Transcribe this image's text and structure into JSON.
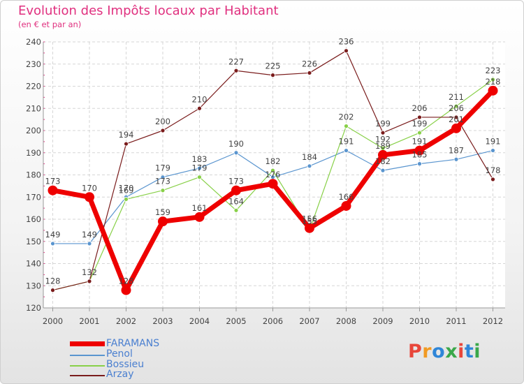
{
  "title": "Evolution des Impôts locaux par Habitant",
  "subtitle": "(en € et par an)",
  "logo": {
    "text": "Proxiti",
    "colors": [
      "#e8463a",
      "#f19a23",
      "#2f86d8",
      "#3aa84a",
      "#e8463a",
      "#2f86d8",
      "#3aa84a"
    ]
  },
  "chart_data": {
    "type": "line",
    "categories": [
      "2000",
      "2001",
      "2002",
      "2003",
      "2004",
      "2005",
      "2006",
      "2007",
      "2008",
      "2009",
      "2010",
      "2011",
      "2012"
    ],
    "ylim": [
      120,
      240
    ],
    "yticks": [
      120,
      130,
      140,
      150,
      160,
      170,
      180,
      190,
      200,
      210,
      220,
      230,
      240
    ],
    "grid": true,
    "series": [
      {
        "name": "FARAMANS",
        "color": "#ee0000",
        "width": 7,
        "marker": 7,
        "values": [
          173,
          170,
          128,
          159,
          161,
          173,
          176,
          156,
          166,
          189,
          191,
          201,
          218
        ],
        "labels": [
          "173",
          "170",
          "128",
          "159",
          "161",
          "173",
          "",
          "156",
          "166",
          "",
          "",
          "",
          ""
        ]
      },
      {
        "name": "Penol",
        "color": "#5a95cf",
        "width": 1.2,
        "marker": 3,
        "values": [
          149,
          149,
          170,
          179,
          183,
          190,
          179,
          184,
          191,
          182,
          185,
          187,
          191
        ],
        "labels": [
          "149",
          "149",
          "170",
          "179",
          "183",
          "190",
          "",
          "184",
          "191",
          "182",
          "185",
          "187",
          "191"
        ]
      },
      {
        "name": "Bossieu",
        "color": "#88d048",
        "width": 1.2,
        "marker": 3,
        "values": [
          128,
          132,
          169,
          173,
          179,
          164,
          182,
          155,
          202,
          192,
          199,
          211,
          223
        ],
        "labels": [
          "",
          "",
          "169",
          "173",
          "179",
          "164",
          "182",
          "155",
          "202",
          "192",
          "199",
          "211",
          "223"
        ]
      },
      {
        "name": "Arzay",
        "color": "#7a1c1c",
        "width": 1.2,
        "marker": 3,
        "values": [
          128,
          132,
          194,
          200,
          210,
          227,
          225,
          226,
          236,
          199,
          206,
          206,
          178
        ],
        "labels": [
          "128",
          "132",
          "194",
          "200",
          "210",
          "227",
          "225",
          "226",
          "236",
          "199",
          "206",
          "206",
          "178"
        ]
      }
    ],
    "extra_labels": [
      {
        "x": "2006",
        "series": "FARAMANS",
        "text": "176"
      },
      {
        "x": "2009",
        "series": "FARAMANS",
        "text": "189"
      },
      {
        "x": "2010",
        "series": "FARAMANS",
        "text": "191"
      },
      {
        "x": "2011",
        "series": "FARAMANS",
        "text": "201"
      },
      {
        "x": "2012",
        "series": "FARAMANS",
        "text": "218"
      }
    ]
  }
}
